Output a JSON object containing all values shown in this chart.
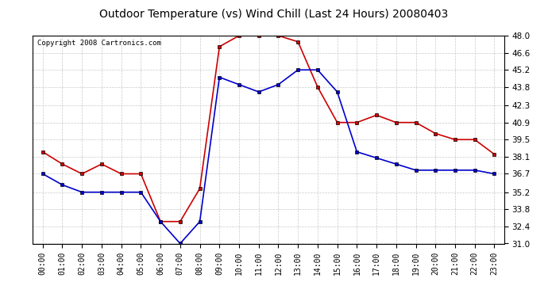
{
  "title": "Outdoor Temperature (vs) Wind Chill (Last 24 Hours) 20080403",
  "copyright": "Copyright 2008 Cartronics.com",
  "hours": [
    "00:00",
    "01:00",
    "02:00",
    "03:00",
    "04:00",
    "05:00",
    "06:00",
    "07:00",
    "08:00",
    "09:00",
    "10:00",
    "11:00",
    "12:00",
    "13:00",
    "14:00",
    "15:00",
    "16:00",
    "17:00",
    "18:00",
    "19:00",
    "20:00",
    "21:00",
    "22:00",
    "23:00"
  ],
  "temp": [
    38.5,
    37.5,
    36.7,
    37.5,
    36.7,
    36.7,
    32.8,
    32.8,
    35.5,
    47.1,
    48.0,
    48.0,
    48.0,
    47.5,
    43.8,
    40.9,
    40.9,
    41.5,
    40.9,
    40.9,
    40.0,
    39.5,
    39.5,
    38.3
  ],
  "windchill": [
    36.7,
    35.8,
    35.2,
    35.2,
    35.2,
    35.2,
    32.8,
    31.0,
    32.8,
    44.6,
    44.0,
    43.4,
    44.0,
    45.2,
    45.2,
    43.4,
    38.5,
    38.0,
    37.5,
    37.0,
    37.0,
    37.0,
    37.0,
    36.7
  ],
  "temp_color": "#cc0000",
  "windchill_color": "#0000cc",
  "ylim": [
    31.0,
    48.0
  ],
  "yticks": [
    31.0,
    32.4,
    33.8,
    35.2,
    36.7,
    38.1,
    39.5,
    40.9,
    42.3,
    43.8,
    45.2,
    46.6,
    48.0
  ],
  "background_color": "#ffffff",
  "grid_color": "#bbbbbb",
  "title_fontsize": 10,
  "copyright_fontsize": 6.5,
  "tick_fontsize": 7,
  "ytick_fontsize": 7.5
}
